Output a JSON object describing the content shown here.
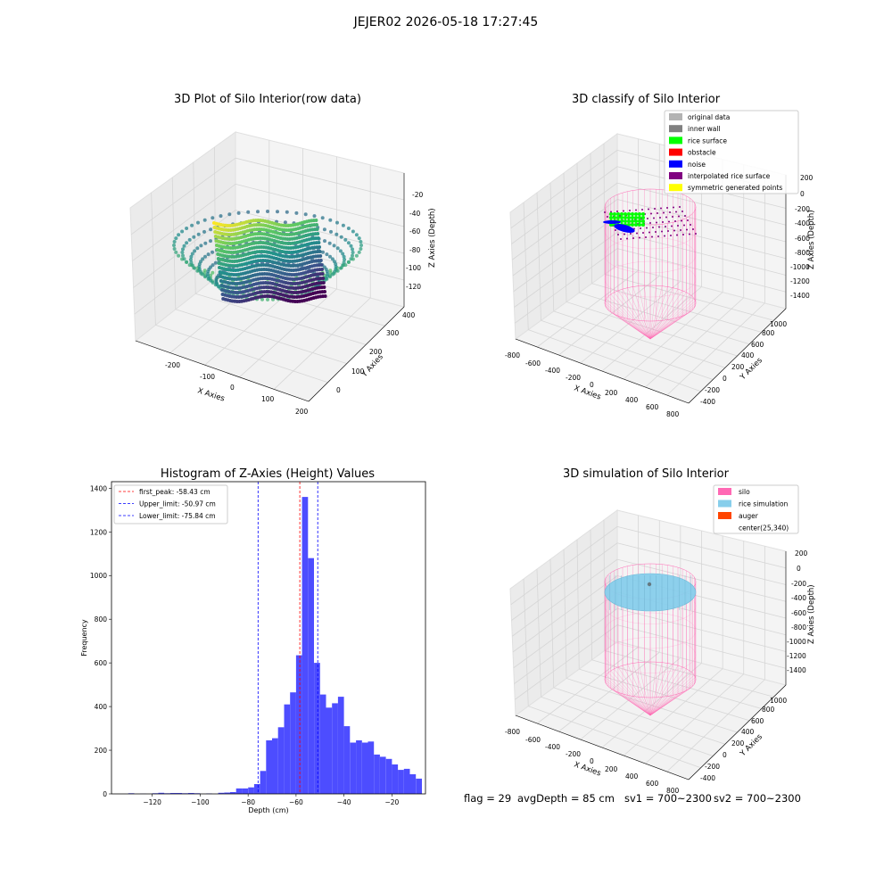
{
  "suptitle": "JEJER02 2026-05-18 17:27:45",
  "colors": {
    "pane_fill": "#f2f2f2",
    "pane_side": "#e9e9e9",
    "grid": "#d0d0d0",
    "silo": "#ff69b4",
    "rice_simulation": "#87ceeb",
    "auger": "#ff4500",
    "hist_bar": "#4d4dff",
    "peak_line": "#ff0000",
    "limit_line": "#0000ff",
    "classify": {
      "original_data": "#b3b3b3",
      "inner_wall": "#808080",
      "rice_surface": "#00ff00",
      "obstacle": "#ff0000",
      "noise": "#0000ff",
      "interpolated_rice_surface": "#800080",
      "symmetric_generated_points": "#ffff00"
    }
  },
  "footer": {
    "flag": "flag = 29",
    "avg_depth": "avgDepth = 85 cm",
    "sv1": "sv1 = 700~2300",
    "sv2": "sv2 = 700~2300"
  },
  "chart_data": [
    {
      "type": "scatter",
      "title": "3D Plot of Silo Interior(row data)",
      "xlabel": "X Axies",
      "ylabel": "Y Axies",
      "zlabel": "Z Axies (Depth)",
      "x_ticks": [
        "-200",
        "-100",
        "0",
        "100",
        "200"
      ],
      "y_ticks": [
        "0",
        "100",
        "200",
        "300",
        "400"
      ],
      "z_ticks": [
        "-20",
        "-40",
        "-60",
        "-80",
        "-100",
        "-120"
      ],
      "xlim": [
        -250,
        200
      ],
      "ylim": [
        -50,
        400
      ],
      "zlim": [
        -135,
        -5
      ],
      "colormap": "viridis"
    },
    {
      "type": "scatter",
      "title": "3D classify of Silo Interior",
      "xlabel": "X Axies",
      "ylabel": "Y Axies",
      "zlabel": "Z Axies (Depth)",
      "x_ticks": [
        "-800",
        "-600",
        "-400",
        "-200",
        "0",
        "200",
        "400",
        "600",
        "800"
      ],
      "y_ticks": [
        "-400",
        "-200",
        "0",
        "200",
        "400",
        "600",
        "800",
        "1000"
      ],
      "z_ticks": [
        "200",
        "0",
        "-200",
        "-400",
        "-600",
        "-800",
        "-1000",
        "-1200",
        "-1400"
      ],
      "legend": [
        "original data",
        "inner wall",
        "rice surface",
        "obstacle",
        "noise",
        "interpolated rice surface",
        "symmetric generated points"
      ],
      "legend_position": "top-right"
    },
    {
      "type": "bar",
      "title": "Histogram of Z-Axies (Height) Values",
      "xlabel": "Depth (cm)",
      "ylabel": "Frequency",
      "xlim": [
        -137,
        -6
      ],
      "ylim": [
        0,
        1430
      ],
      "x_ticks": [
        -120,
        -100,
        -80,
        -60,
        -40,
        -20
      ],
      "y_ticks": [
        0,
        200,
        400,
        600,
        800,
        1000,
        1200,
        1400
      ],
      "bin_width": 2.5,
      "bins": [
        {
          "x": -130,
          "value": 3
        },
        {
          "x": -125,
          "value": 1
        },
        {
          "x": -120,
          "value": 3
        },
        {
          "x": -117.5,
          "value": 5
        },
        {
          "x": -115,
          "value": 3
        },
        {
          "x": -112.5,
          "value": 4
        },
        {
          "x": -110,
          "value": 4
        },
        {
          "x": -107.5,
          "value": 3
        },
        {
          "x": -105,
          "value": 4
        },
        {
          "x": -102.5,
          "value": 3
        },
        {
          "x": -97.5,
          "value": 2
        },
        {
          "x": -92.5,
          "value": 5
        },
        {
          "x": -90,
          "value": 6
        },
        {
          "x": -87.5,
          "value": 8
        },
        {
          "x": -85,
          "value": 25
        },
        {
          "x": -82.5,
          "value": 25
        },
        {
          "x": -80,
          "value": 30
        },
        {
          "x": -77.5,
          "value": 45
        },
        {
          "x": -75,
          "value": 105
        },
        {
          "x": -72.5,
          "value": 245
        },
        {
          "x": -70,
          "value": 255
        },
        {
          "x": -67.5,
          "value": 305
        },
        {
          "x": -65,
          "value": 410
        },
        {
          "x": -62.5,
          "value": 465
        },
        {
          "x": -60,
          "value": 635
        },
        {
          "x": -57.5,
          "value": 1360
        },
        {
          "x": -55,
          "value": 1080
        },
        {
          "x": -52.5,
          "value": 600
        },
        {
          "x": -50,
          "value": 455
        },
        {
          "x": -47.5,
          "value": 395
        },
        {
          "x": -45,
          "value": 415
        },
        {
          "x": -42.5,
          "value": 445
        },
        {
          "x": -40,
          "value": 310
        },
        {
          "x": -37.5,
          "value": 235
        },
        {
          "x": -35,
          "value": 245
        },
        {
          "x": -32.5,
          "value": 235
        },
        {
          "x": -30,
          "value": 240
        },
        {
          "x": -27.5,
          "value": 180
        },
        {
          "x": -25,
          "value": 170
        },
        {
          "x": -22.5,
          "value": 160
        },
        {
          "x": -20,
          "value": 135
        },
        {
          "x": -17.5,
          "value": 110
        },
        {
          "x": -15,
          "value": 115
        },
        {
          "x": -12.5,
          "value": 90
        },
        {
          "x": -10,
          "value": 70
        }
      ],
      "vlines": [
        {
          "label": "first_peak: -58.43 cm",
          "x": -58.43,
          "color": "#ff0000"
        },
        {
          "label": "Upper_limit: -50.97 cm",
          "x": -50.97,
          "color": "#0000ff"
        },
        {
          "label": "Lower_limit: -75.84 cm",
          "x": -75.84,
          "color": "#0000ff"
        }
      ],
      "legend_position": "top-left"
    },
    {
      "type": "scatter",
      "title": "3D simulation of Silo Interior",
      "xlabel": "X Axies",
      "ylabel": "Y Axies",
      "zlabel": "Z Axies (Depth)",
      "x_ticks": [
        "-800",
        "-600",
        "-400",
        "-200",
        "0",
        "200",
        "400",
        "600",
        "800"
      ],
      "y_ticks": [
        "-400",
        "-200",
        "0",
        "200",
        "400",
        "600",
        "800",
        "1000"
      ],
      "z_ticks": [
        "200",
        "0",
        "-200",
        "-400",
        "-600",
        "-800",
        "-1000",
        "-1200",
        "-1400"
      ],
      "legend": [
        "silo",
        "rice simulation",
        "auger",
        "center(25,340)"
      ],
      "legend_position": "top-right"
    }
  ]
}
